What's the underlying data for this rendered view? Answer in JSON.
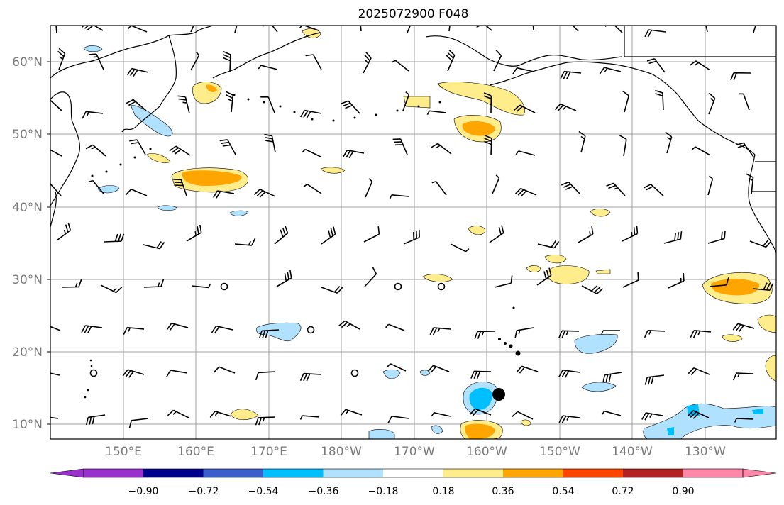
{
  "title": "2025072900 F048",
  "map": {
    "lat_labels": [
      "60°N",
      "50°N",
      "40°N",
      "30°N",
      "20°N",
      "10°N"
    ],
    "lon_labels": [
      "150°E",
      "160°E",
      "170°E",
      "180°W",
      "170°W",
      "160°W",
      "150°W",
      "140°W",
      "130°W"
    ]
  },
  "colorbar": {
    "colors": [
      "#9932CC",
      "#00008B",
      "#3A5FCD",
      "#00BFFF",
      "#B0E2FF",
      "#FFFFFF",
      "#FFEC8B",
      "#FFA500",
      "#FF4500",
      "#B22222",
      "#FF88AA"
    ],
    "tick_labels": [
      "−0.90",
      "−0.72",
      "−0.54",
      "−0.36",
      "−0.18",
      "0.18",
      "0.36",
      "0.54",
      "0.72",
      "0.90"
    ]
  },
  "storm_marker": {
    "label": ""
  }
}
